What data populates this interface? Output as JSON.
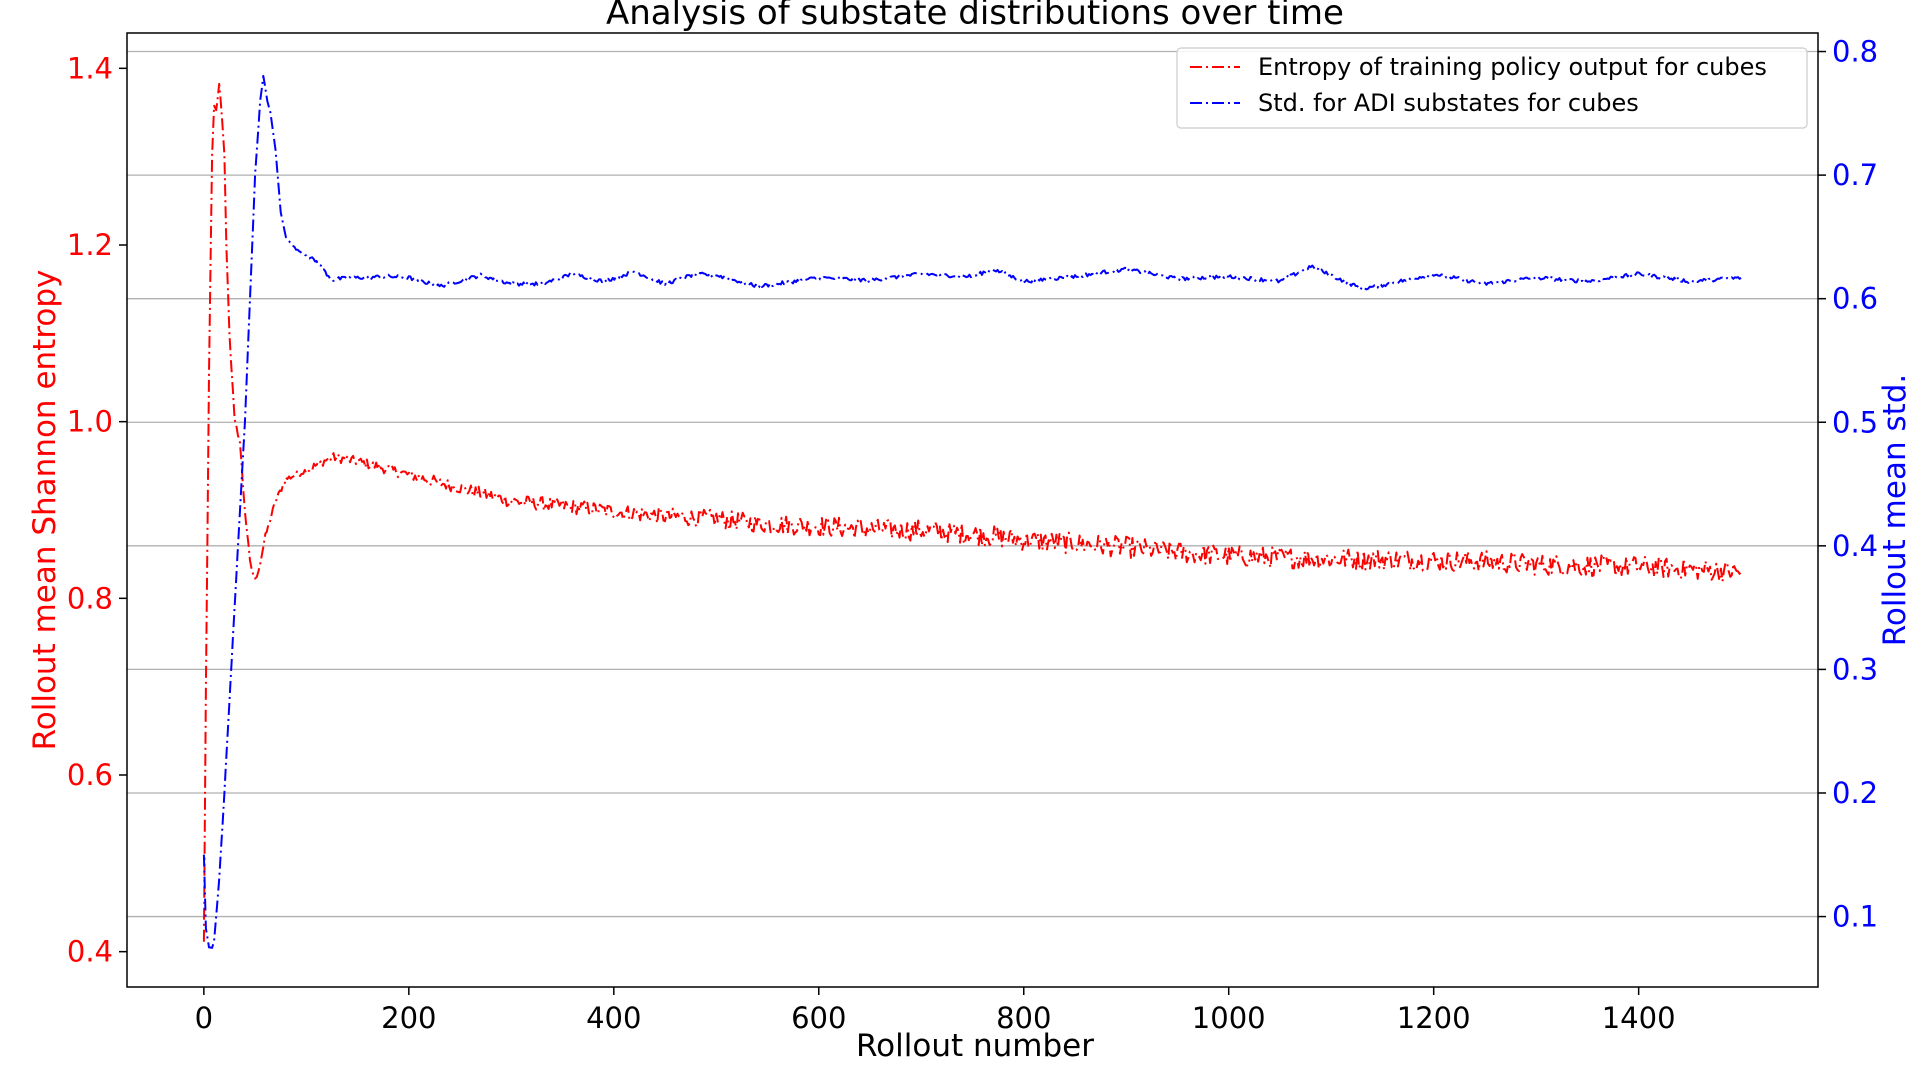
{
  "chart_data": {
    "type": "line",
    "title": "Analysis of substate distributions over time",
    "xlabel": "Rollout number",
    "ylabel_left": "Rollout mean Shannon entropy",
    "ylabel_right": "Rollout mean std.",
    "xlim": [
      -75,
      1575
    ],
    "ylim_left": [
      0.36,
      1.44
    ],
    "ylim_right": [
      0.043,
      0.815
    ],
    "x_ticks": [
      0,
      200,
      400,
      600,
      800,
      1000,
      1200,
      1400
    ],
    "y_ticks_left": [
      0.4,
      0.6,
      0.8,
      1.0,
      1.2,
      1.4
    ],
    "y_ticks_right": [
      0.1,
      0.2,
      0.3,
      0.4,
      0.5,
      0.6,
      0.7,
      0.8
    ],
    "grid": "horizontal lines at right-axis ticks",
    "legend_position": "top-right",
    "colors": {
      "left_axis": "#ff0000",
      "right_axis": "#0000ff",
      "grid": "#b0b0b0"
    },
    "series": [
      {
        "name": "Entropy of training policy output for cubes",
        "axis": "left",
        "color": "#ff0000",
        "line_style": "dash-dot",
        "noise": 0.012,
        "x": [
          0,
          2,
          5,
          8,
          10,
          12,
          15,
          18,
          20,
          22,
          25,
          30,
          35,
          40,
          45,
          50,
          55,
          60,
          70,
          80,
          100,
          125,
          150,
          200,
          250,
          300,
          350,
          400,
          450,
          500,
          550,
          600,
          650,
          700,
          750,
          800,
          850,
          900,
          950,
          1000,
          1050,
          1100,
          1150,
          1200,
          1250,
          1300,
          1350,
          1400,
          1450,
          1500
        ],
        "y": [
          0.41,
          0.7,
          1.05,
          1.3,
          1.36,
          1.35,
          1.38,
          1.34,
          1.3,
          1.2,
          1.1,
          1.0,
          0.98,
          0.9,
          0.84,
          0.82,
          0.84,
          0.87,
          0.91,
          0.935,
          0.945,
          0.96,
          0.955,
          0.94,
          0.925,
          0.91,
          0.905,
          0.898,
          0.893,
          0.89,
          0.884,
          0.882,
          0.878,
          0.877,
          0.873,
          0.866,
          0.862,
          0.858,
          0.852,
          0.848,
          0.846,
          0.845,
          0.844,
          0.843,
          0.842,
          0.838,
          0.837,
          0.836,
          0.833,
          0.83
        ]
      },
      {
        "name": "Std. for ADI substates for cubes",
        "axis": "right",
        "color": "#0000ff",
        "line_style": "dash-dot",
        "noise": 0.0015,
        "x": [
          0,
          2,
          5,
          8,
          10,
          15,
          20,
          30,
          40,
          45,
          50,
          55,
          58,
          62,
          65,
          70,
          75,
          80,
          90,
          100,
          110,
          120,
          125,
          130,
          150,
          180,
          200,
          230,
          270,
          300,
          330,
          360,
          390,
          420,
          450,
          480,
          500,
          540,
          560,
          600,
          650,
          700,
          750,
          770,
          800,
          850,
          900,
          950,
          1000,
          1050,
          1080,
          1130,
          1150,
          1200,
          1250,
          1300,
          1350,
          1400,
          1450,
          1500
        ],
        "y": [
          0.15,
          0.09,
          0.075,
          0.075,
          0.08,
          0.13,
          0.2,
          0.35,
          0.5,
          0.6,
          0.7,
          0.76,
          0.78,
          0.76,
          0.75,
          0.72,
          0.67,
          0.65,
          0.64,
          0.635,
          0.63,
          0.62,
          0.615,
          0.616,
          0.617,
          0.618,
          0.617,
          0.61,
          0.619,
          0.612,
          0.612,
          0.62,
          0.614,
          0.622,
          0.612,
          0.62,
          0.619,
          0.61,
          0.612,
          0.617,
          0.615,
          0.62,
          0.618,
          0.624,
          0.614,
          0.618,
          0.624,
          0.616,
          0.618,
          0.614,
          0.626,
          0.608,
          0.611,
          0.62,
          0.612,
          0.617,
          0.614,
          0.62,
          0.614,
          0.617
        ]
      }
    ]
  }
}
